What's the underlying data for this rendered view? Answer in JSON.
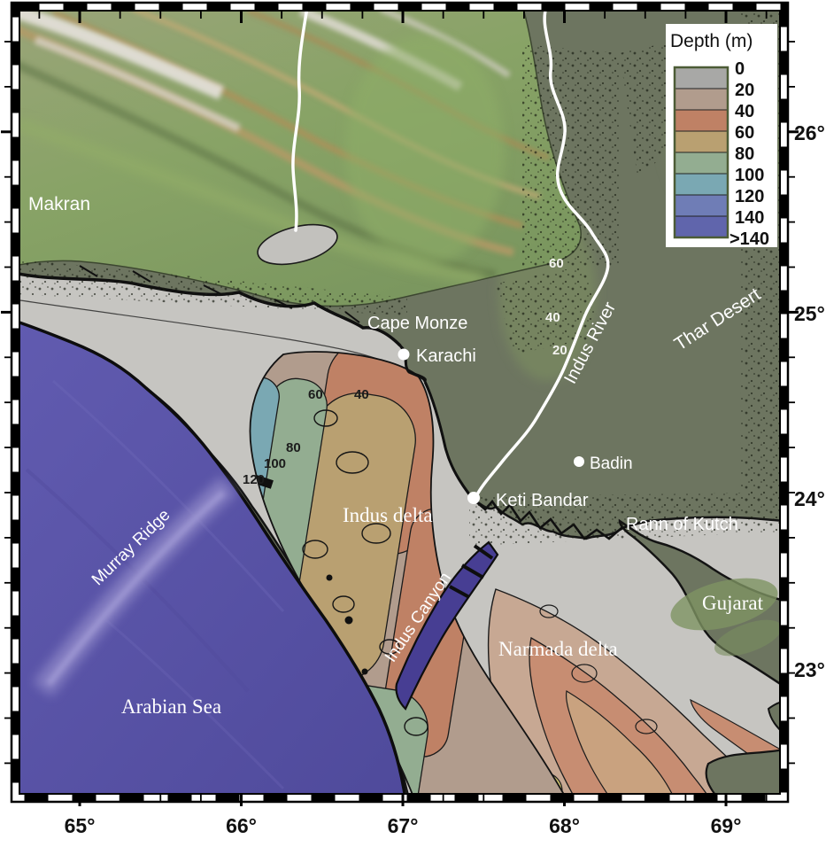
{
  "legend": {
    "title": "Depth (m)",
    "ticks": [
      "0",
      "20",
      "40",
      "60",
      "80",
      "100",
      "120",
      "140",
      ">140"
    ],
    "swatches": [
      {
        "range": "0-20",
        "color": "#a8a8a6"
      },
      {
        "range": "20-40",
        "color": "#b19c8d"
      },
      {
        "range": "40-60",
        "color": "#bf8165"
      },
      {
        "range": "60-80",
        "color": "#b9a071"
      },
      {
        "range": "80-100",
        "color": "#93ad91"
      },
      {
        "range": "100-120",
        "color": "#7aa8b3"
      },
      {
        "range": "120-140",
        "color": "#6f7db6"
      },
      {
        "range": ">140",
        "color": "#6065ac"
      }
    ]
  },
  "places": {
    "makran": "Makran",
    "cape_monze": "Cape Monze",
    "indus_river": "Indus River",
    "thar_desert": "Thar Desert",
    "rann_of_kutch": "Rann of Kutch",
    "murray_ridge": "Murray Ridge",
    "indus_delta": "Indus delta",
    "indus_canyon": "Indus Canyon",
    "gujarat": "Gujarat",
    "narmada_delta": "Narmada delta",
    "arabian_sea": "Arabian Sea"
  },
  "cities": [
    {
      "name": "Karachi"
    },
    {
      "name": "Badin"
    },
    {
      "name": "Keti Bandar"
    }
  ],
  "contour_labels": {
    "plain": [
      "60",
      "40",
      "20"
    ],
    "fan": [
      "60",
      "40",
      "80",
      "100",
      "120"
    ]
  },
  "axes": {
    "x": [
      "65°",
      "66°",
      "67°",
      "68°",
      "69°"
    ],
    "y": [
      "26°",
      "25°",
      "24°",
      "23°"
    ]
  },
  "colors": {
    "deep_sea": "#5b56a7",
    "shelf_gray": "#c6c5c1",
    "land_olive": "#6d7560",
    "highland_green": "#87a065"
  }
}
